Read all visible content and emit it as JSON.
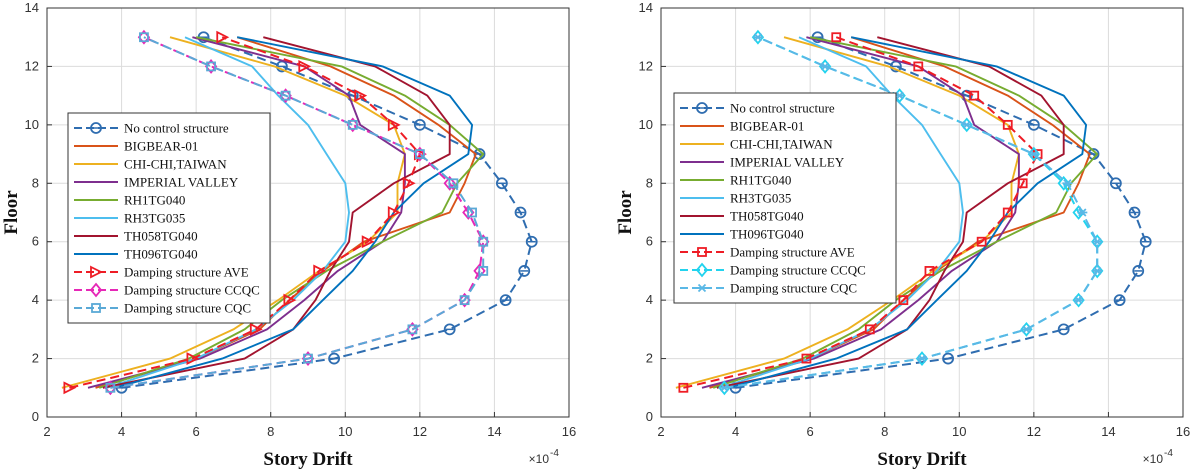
{
  "chart_data": [
    {
      "type": "line",
      "xlabel": "Story Drift",
      "ylabel": "Floor",
      "x_exponent_label": "×10",
      "x_exponent_power": "-4",
      "xlim": [
        2,
        16
      ],
      "ylim": [
        0,
        14
      ],
      "xticks": [
        "2",
        "4",
        "6",
        "8",
        "10",
        "12",
        "14",
        "16"
      ],
      "yticks": [
        "0",
        "2",
        "4",
        "6",
        "8",
        "10",
        "12",
        "14"
      ],
      "grid": true,
      "legend_position": "center-left",
      "series": [
        {
          "name": "No control structure",
          "color": "#2f6db0",
          "dash": "dash",
          "marker": "circle",
          "x": [
            4.0,
            9.7,
            12.8,
            14.3,
            14.8,
            15.0,
            14.7,
            14.2,
            13.6,
            12.0,
            10.2,
            8.3,
            6.2
          ],
          "y": [
            1,
            2,
            3,
            4,
            5,
            6,
            7,
            8,
            9,
            10,
            11,
            12,
            13
          ]
        },
        {
          "name": "BIGBEAR-01",
          "color": "#d95319",
          "dash": "solid",
          "marker": "none",
          "x": [
            3.3,
            6.0,
            7.7,
            8.5,
            9.4,
            10.5,
            12.8,
            13.2,
            13.5,
            12.5,
            11.3,
            9.6,
            7.1
          ],
          "y": [
            1,
            2,
            3,
            4,
            5,
            6,
            7,
            8,
            9,
            10,
            11,
            12,
            13
          ]
        },
        {
          "name": "CHI-CHI,TAIWAN",
          "color": "#edb120",
          "dash": "solid",
          "marker": "none",
          "x": [
            2.4,
            5.3,
            7.0,
            8.2,
            9.3,
            10.6,
            11.4,
            11.4,
            11.6,
            11.3,
            10.0,
            8.1,
            5.3
          ],
          "y": [
            1,
            2,
            3,
            4,
            5,
            6,
            7,
            8,
            9,
            10,
            11,
            12,
            13
          ]
        },
        {
          "name": "IMPERIAL VALLEY",
          "color": "#7e2f8e",
          "dash": "solid",
          "marker": "none",
          "x": [
            3.1,
            6.1,
            7.9,
            8.9,
            9.8,
            11.0,
            11.5,
            11.6,
            11.6,
            10.4,
            10.1,
            8.9,
            5.9
          ],
          "y": [
            1,
            2,
            3,
            4,
            5,
            6,
            7,
            8,
            9,
            10,
            11,
            12,
            13
          ]
        },
        {
          "name": "RH1TG040",
          "color": "#77ac30",
          "dash": "solid",
          "marker": "none",
          "x": [
            3.4,
            5.8,
            7.3,
            8.3,
            9.5,
            11.0,
            12.6,
            13.0,
            13.7,
            12.8,
            11.6,
            9.9,
            6.0
          ],
          "y": [
            1,
            2,
            3,
            4,
            5,
            6,
            7,
            8,
            9,
            10,
            11,
            12,
            13
          ]
        },
        {
          "name": "RH3TG035",
          "color": "#4dbeee",
          "dash": "solid",
          "marker": "none",
          "x": [
            3.6,
            6.0,
            7.6,
            8.6,
            9.4,
            10.0,
            10.1,
            10.0,
            9.5,
            9.0,
            8.2,
            7.5,
            5.7
          ],
          "y": [
            1,
            2,
            3,
            4,
            5,
            6,
            7,
            8,
            9,
            10,
            11,
            12,
            13
          ]
        },
        {
          "name": "TH058TG040",
          "color": "#a2142f",
          "dash": "solid",
          "marker": "none",
          "x": [
            3.5,
            7.3,
            8.6,
            9.2,
            9.6,
            10.1,
            10.2,
            11.3,
            12.8,
            12.8,
            12.2,
            10.8,
            7.8
          ],
          "y": [
            1,
            2,
            3,
            4,
            5,
            6,
            7,
            8,
            9,
            10,
            11,
            12,
            13
          ]
        },
        {
          "name": "TH096TG040",
          "color": "#0072bd",
          "dash": "solid",
          "marker": "none",
          "x": [
            3.8,
            6.7,
            8.6,
            9.4,
            10.2,
            10.8,
            11.3,
            12.1,
            13.3,
            13.4,
            12.8,
            11.0,
            7.1
          ],
          "y": [
            1,
            2,
            3,
            4,
            5,
            6,
            7,
            8,
            9,
            10,
            11,
            12,
            13
          ]
        },
        {
          "name": "Damping structure AVE",
          "color": "#ee1c25",
          "dash": "dash",
          "marker": "triangle-right",
          "x": [
            2.6,
            5.9,
            7.6,
            8.5,
            9.3,
            10.6,
            11.3,
            11.7,
            12.0,
            11.3,
            10.4,
            8.9,
            6.7
          ],
          "y": [
            1,
            2,
            3,
            4,
            5,
            6,
            7,
            8,
            9,
            10,
            11,
            12,
            13
          ]
        },
        {
          "name": "Damping structure CCQC",
          "color": "#e628b7",
          "dash": "dash",
          "marker": "diamond",
          "x": [
            3.7,
            9.0,
            11.8,
            13.2,
            13.6,
            13.7,
            13.3,
            12.8,
            12.0,
            10.2,
            8.4,
            6.4,
            4.6
          ],
          "y": [
            1,
            2,
            3,
            4,
            5,
            6,
            7,
            8,
            9,
            10,
            11,
            12,
            13
          ]
        },
        {
          "name": "Damping structure CQC",
          "color": "#5aa9d6",
          "dash": "dash",
          "marker": "square",
          "x": [
            3.7,
            9.0,
            11.8,
            13.2,
            13.7,
            13.7,
            13.4,
            12.9,
            12.0,
            10.2,
            8.4,
            6.4,
            4.6
          ],
          "y": [
            1,
            2,
            3,
            4,
            5,
            6,
            7,
            8,
            9,
            10,
            11,
            12,
            13
          ]
        }
      ]
    },
    {
      "type": "line",
      "xlabel": "Story Drift",
      "ylabel": "Floor",
      "x_exponent_label": "×10",
      "x_exponent_power": "-4",
      "xlim": [
        2,
        16
      ],
      "ylim": [
        0,
        14
      ],
      "xticks": [
        "2",
        "4",
        "6",
        "8",
        "10",
        "12",
        "14",
        "16"
      ],
      "yticks": [
        "0",
        "2",
        "4",
        "6",
        "8",
        "10",
        "12",
        "14"
      ],
      "grid": true,
      "legend_position": "center-left",
      "series": [
        {
          "name": "No control structure",
          "color": "#2f6db0",
          "dash": "dash",
          "marker": "circle",
          "x": [
            4.0,
            9.7,
            12.8,
            14.3,
            14.8,
            15.0,
            14.7,
            14.2,
            13.6,
            12.0,
            10.2,
            8.3,
            6.2
          ],
          "y": [
            1,
            2,
            3,
            4,
            5,
            6,
            7,
            8,
            9,
            10,
            11,
            12,
            13
          ]
        },
        {
          "name": "BIGBEAR-01",
          "color": "#d95319",
          "dash": "solid",
          "marker": "none",
          "x": [
            3.3,
            6.0,
            7.7,
            8.5,
            9.4,
            10.5,
            12.8,
            13.2,
            13.5,
            12.5,
            11.3,
            9.6,
            7.1
          ],
          "y": [
            1,
            2,
            3,
            4,
            5,
            6,
            7,
            8,
            9,
            10,
            11,
            12,
            13
          ]
        },
        {
          "name": "CHI-CHI,TAIWAN",
          "color": "#edb120",
          "dash": "solid",
          "marker": "none",
          "x": [
            2.4,
            5.3,
            7.0,
            8.2,
            9.3,
            10.6,
            11.4,
            11.4,
            11.6,
            11.3,
            10.0,
            8.1,
            5.3
          ],
          "y": [
            1,
            2,
            3,
            4,
            5,
            6,
            7,
            8,
            9,
            10,
            11,
            12,
            13
          ]
        },
        {
          "name": "IMPERIAL VALLEY",
          "color": "#7e2f8e",
          "dash": "solid",
          "marker": "none",
          "x": [
            3.1,
            6.1,
            7.9,
            8.9,
            9.8,
            11.0,
            11.5,
            11.6,
            11.6,
            10.4,
            10.1,
            8.9,
            5.9
          ],
          "y": [
            1,
            2,
            3,
            4,
            5,
            6,
            7,
            8,
            9,
            10,
            11,
            12,
            13
          ]
        },
        {
          "name": "RH1TG040",
          "color": "#77ac30",
          "dash": "solid",
          "marker": "none",
          "x": [
            3.4,
            5.8,
            7.3,
            8.3,
            9.5,
            11.0,
            12.6,
            13.0,
            13.7,
            12.8,
            11.6,
            9.9,
            6.0
          ],
          "y": [
            1,
            2,
            3,
            4,
            5,
            6,
            7,
            8,
            9,
            10,
            11,
            12,
            13
          ]
        },
        {
          "name": "RH3TG035",
          "color": "#4dbeee",
          "dash": "solid",
          "marker": "none",
          "x": [
            3.6,
            6.0,
            7.6,
            8.6,
            9.4,
            10.0,
            10.1,
            10.0,
            9.5,
            9.0,
            8.2,
            7.5,
            5.7
          ],
          "y": [
            1,
            2,
            3,
            4,
            5,
            6,
            7,
            8,
            9,
            10,
            11,
            12,
            13
          ]
        },
        {
          "name": "TH058TG040",
          "color": "#a2142f",
          "dash": "solid",
          "marker": "none",
          "x": [
            3.5,
            7.3,
            8.6,
            9.2,
            9.6,
            10.1,
            10.2,
            11.3,
            12.8,
            12.8,
            12.2,
            10.8,
            7.8
          ],
          "y": [
            1,
            2,
            3,
            4,
            5,
            6,
            7,
            8,
            9,
            10,
            11,
            12,
            13
          ]
        },
        {
          "name": "TH096TG040",
          "color": "#0072bd",
          "dash": "solid",
          "marker": "none",
          "x": [
            3.8,
            6.7,
            8.6,
            9.4,
            10.2,
            10.8,
            11.3,
            12.1,
            13.3,
            13.4,
            12.8,
            11.0,
            7.1
          ],
          "y": [
            1,
            2,
            3,
            4,
            5,
            6,
            7,
            8,
            9,
            10,
            11,
            12,
            13
          ]
        },
        {
          "name": "Damping structure AVE",
          "color": "#ee1c25",
          "dash": "dash",
          "marker": "square",
          "x": [
            2.6,
            5.9,
            7.6,
            8.5,
            9.2,
            10.6,
            11.3,
            11.7,
            12.1,
            11.3,
            10.4,
            8.9,
            6.7
          ],
          "y": [
            1,
            2,
            3,
            4,
            5,
            6,
            7,
            8,
            9,
            10,
            11,
            12,
            13
          ]
        },
        {
          "name": "Damping structure CCQC",
          "color": "#22d3ee",
          "dash": "dash",
          "marker": "diamond",
          "x": [
            3.7,
            9.0,
            11.8,
            13.2,
            13.7,
            13.7,
            13.2,
            12.8,
            12.0,
            10.2,
            8.4,
            6.4,
            4.6
          ],
          "y": [
            1,
            2,
            3,
            4,
            5,
            6,
            7,
            8,
            9,
            10,
            11,
            12,
            13
          ]
        },
        {
          "name": "Damping structure CQC",
          "color": "#5ab8e6",
          "dash": "dash",
          "marker": "asterisk",
          "x": [
            3.7,
            9.0,
            11.8,
            13.2,
            13.7,
            13.7,
            13.3,
            12.9,
            12.0,
            10.2,
            8.4,
            6.4,
            4.6
          ],
          "y": [
            1,
            2,
            3,
            4,
            5,
            6,
            7,
            8,
            9,
            10,
            11,
            12,
            13
          ]
        }
      ]
    }
  ]
}
